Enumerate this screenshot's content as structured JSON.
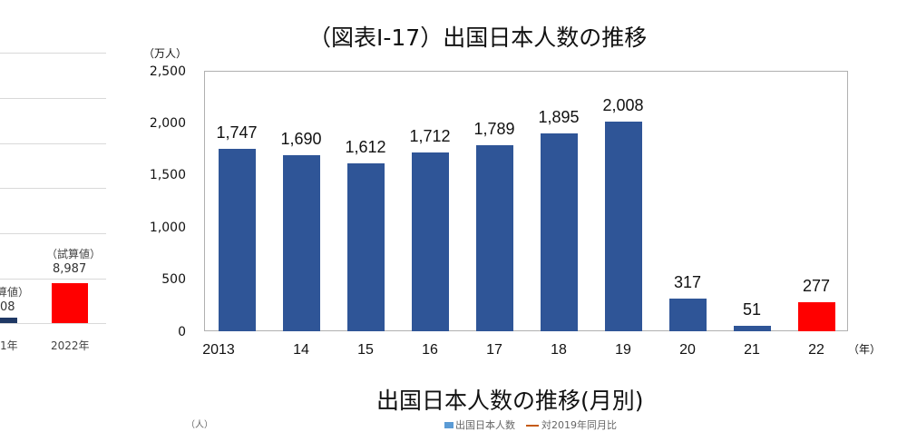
{
  "left_chart": {
    "bars": [
      {
        "label": "1年",
        "value_label": "08",
        "note": "算値）",
        "color": "#1f3864"
      },
      {
        "label": "2022年",
        "value_label": "8,987",
        "note": "（試算値）",
        "color": "#ff0000"
      }
    ]
  },
  "main_chart": {
    "title": "（図表Ⅰ-17）出国日本人数の推移",
    "y_unit": "（万人）",
    "x_unit": "（年）",
    "y_ticks": [
      "2,500",
      "2,000",
      "1,500",
      "1,000",
      "500",
      "0"
    ]
  },
  "chart_data": {
    "type": "bar",
    "title": "（図表Ⅰ-17）出国日本人数の推移",
    "xlabel": "（年）",
    "ylabel": "（万人）",
    "ylim": [
      0,
      2500
    ],
    "yticks": [
      0,
      500,
      1000,
      1500,
      2000,
      2500
    ],
    "grid": false,
    "categories": [
      "2013",
      "14",
      "15",
      "16",
      "17",
      "18",
      "19",
      "20",
      "21",
      "22"
    ],
    "values": [
      1747,
      1690,
      1612,
      1712,
      1789,
      1895,
      2008,
      317,
      51,
      277
    ],
    "value_labels": [
      "1,747",
      "1,690",
      "1,612",
      "1,712",
      "1,789",
      "1,895",
      "2,008",
      "317",
      "51",
      "277"
    ],
    "colors": [
      "#2f5597",
      "#2f5597",
      "#2f5597",
      "#2f5597",
      "#2f5597",
      "#2f5597",
      "#2f5597",
      "#2f5597",
      "#2f5597",
      "#ff0000"
    ]
  },
  "monthly_chart": {
    "title": "出国日本人数の推移(月別)",
    "y_unit": "（人）",
    "legend": [
      {
        "label": "出国日本人数",
        "type": "bar",
        "color": "#5b9bd5"
      },
      {
        "label": "対2019年同月比",
        "type": "line",
        "color": "#c55a11"
      }
    ]
  }
}
